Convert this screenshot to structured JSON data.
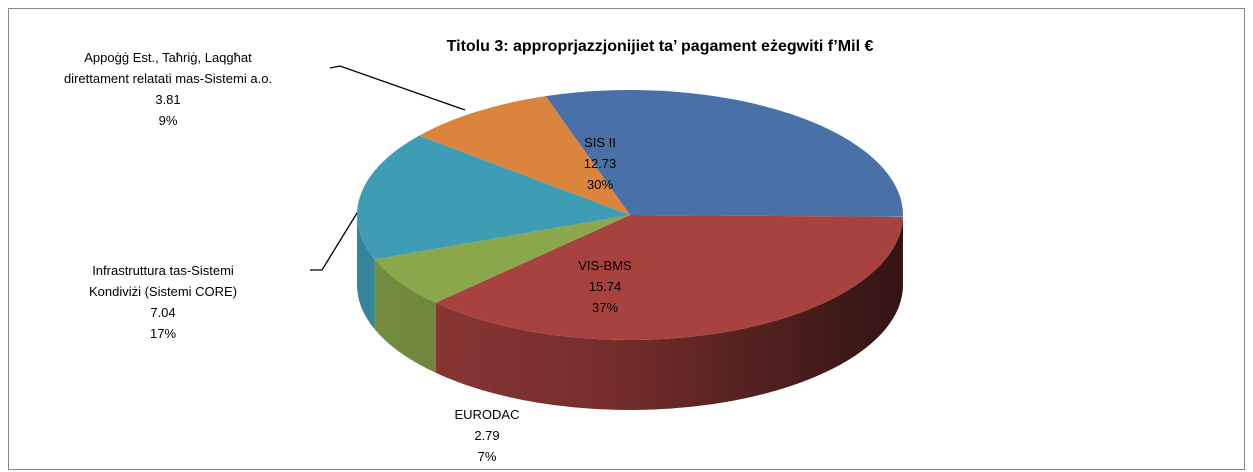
{
  "chart_data": {
    "type": "pie3d",
    "title": "Titolu 3: approprjazzjonijiet ta’ pagament eżegwiti f’Mil €",
    "categories": [
      "SIS II",
      "VIS-BMS",
      "EURODAC",
      "Infrastruttura tas-Sistemi Kondiviżi (Sistemi CORE)",
      "Appoġġ Est., Taħriġ, Laqgħat direttament relatati mas-Sistemi a.o."
    ],
    "values": [
      12.73,
      15.74,
      2.79,
      7.04,
      3.81
    ],
    "percent_labels": [
      "30%",
      "37%",
      "7%",
      "17%",
      "9%"
    ],
    "colors": [
      "#4a70a8",
      "#a8423f",
      "#8aa84b",
      "#3f9cb5",
      "#db843d"
    ]
  }
}
